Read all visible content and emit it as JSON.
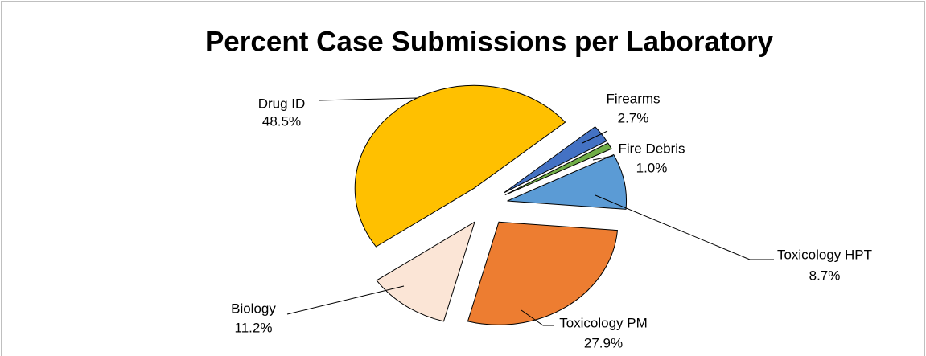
{
  "chart_data": {
    "type": "pie",
    "title": "Percent Case Submissions per Laboratory",
    "categories": [
      "Firearms",
      "Fire Debris",
      "Toxicology HPT",
      "Toxicology PM",
      "Biology",
      "Drug ID"
    ],
    "values": [
      2.7,
      1.0,
      8.7,
      27.9,
      11.2,
      48.5
    ],
    "value_labels": [
      "2.7%",
      "1.0%",
      "8.7%",
      "27.9%",
      "11.2%",
      "48.5%"
    ],
    "colors": [
      "#4472c4",
      "#70ad47",
      "#5b9bd5",
      "#ed7d31",
      "#fbe5d6",
      "#ffc000"
    ]
  }
}
